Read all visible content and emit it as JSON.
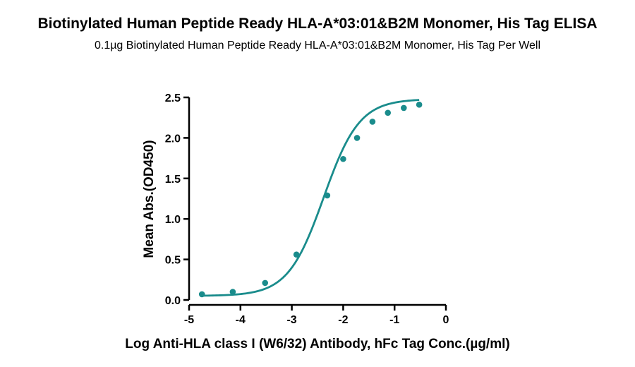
{
  "header": {
    "title": "Biotinylated Human Peptide Ready HLA-A*03:01&B2M Monomer, His Tag ELISA",
    "subtitle": "0.1µg Biotinylated Human Peptide Ready HLA-A*03:01&B2M Monomer, His Tag Per Well"
  },
  "chart_data": {
    "type": "scatter",
    "title": "Biotinylated Human Peptide Ready HLA-A*03:01&B2M Monomer, His Tag ELISA",
    "subtitle": "0.1µg Biotinylated Human Peptide Ready HLA-A*03:01&B2M Monomer, His Tag Per Well",
    "xlabel": "Log Anti-HLA class I (W6/32) Antibody, hFc Tag Conc.(µg/ml)",
    "ylabel": "Mean Abs.(OD450)",
    "xlim": [
      -5,
      0
    ],
    "ylim": [
      0,
      2.5
    ],
    "xticks": [
      "-5",
      "-4",
      "-3",
      "-2",
      "-1",
      "0"
    ],
    "yticks": [
      "0.0",
      "0.5",
      "1.0",
      "1.5",
      "2.0",
      "2.5"
    ],
    "grid": false,
    "fit": "sigmoidal 4PL curve",
    "color": "#1a8c8c",
    "series": [
      {
        "x": [
          -4.75,
          -4.15,
          -3.52,
          -2.91,
          -2.31,
          -2.0,
          -1.73,
          -1.43,
          -1.13,
          -0.82,
          -0.52
        ],
        "y": [
          0.07,
          0.1,
          0.21,
          0.56,
          1.29,
          1.74,
          2.0,
          2.2,
          2.31,
          2.37,
          2.41
        ]
      }
    ]
  }
}
